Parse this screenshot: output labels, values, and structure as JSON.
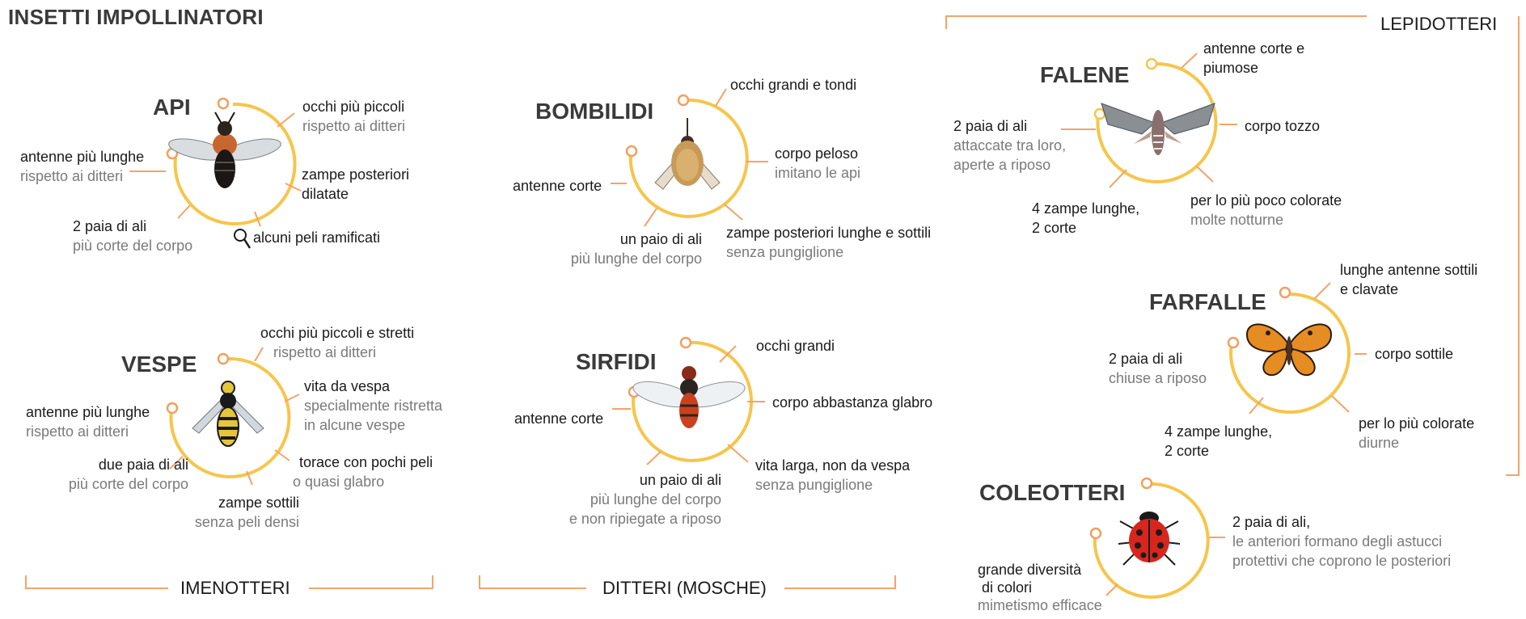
{
  "title": "INSETTI IMPOLLINATORI",
  "colors": {
    "ring": "#F6C54A",
    "accent": "#F0A060",
    "line": "#F2A46A",
    "sub_text": "#7a7a7a"
  },
  "groups": {
    "imenotteri": "IMENOTTERI",
    "ditteri": "DITTERI (MOSCHE)",
    "lepidotteri": "LEPIDOTTERI",
    "coleotteri": "COLEOTTERI"
  },
  "insects": {
    "api": {
      "name": "API",
      "icon": "bee-icon",
      "eyes": {
        "main": "occhi più piccoli",
        "sub": "rispetto ai ditteri"
      },
      "antennae": {
        "main": "antenne più lunghe",
        "sub": "rispetto ai ditteri"
      },
      "legs": {
        "main": "zampe posteriori",
        "sub": "dilatate"
      },
      "wings": {
        "main": "2 paia di ali",
        "sub": "più corte del corpo"
      },
      "hairs": {
        "main": "alcuni peli ramificati"
      }
    },
    "bombilidi": {
      "name": "BOMBILIDI",
      "icon": "bee-fly-icon",
      "eyes": {
        "main": "occhi grandi e tondi"
      },
      "antennae": {
        "main": "antenne corte"
      },
      "body": {
        "main": "corpo peloso",
        "sub": "imitano le api"
      },
      "wings": {
        "main": "un paio di ali",
        "sub": "più lunghe del corpo"
      },
      "legs": {
        "main": "zampe posteriori lunghe e sottili",
        "sub": "senza pungiglione"
      }
    },
    "falene": {
      "name": "FALENE",
      "icon": "moth-icon",
      "antennae": {
        "main": "antenne corte e",
        "sub": "piumose"
      },
      "wings": {
        "main": "2 paia di ali",
        "sub1": "attaccate tra loro,",
        "sub2": "aperte a riposo"
      },
      "body": {
        "main": "corpo tozzo"
      },
      "legs": {
        "main": "4 zampe lunghe,",
        "main2": "2 corte"
      },
      "colors": {
        "main": "per lo più poco colorate",
        "sub": "molte notturne"
      }
    },
    "farfalle": {
      "name": "FARFALLE",
      "icon": "butterfly-icon",
      "antennae": {
        "main": "lunghe antenne sottili",
        "main2": "e clavate"
      },
      "wings": {
        "main": "2 paia di ali",
        "sub": "chiuse a riposo"
      },
      "body": {
        "main": "corpo sottile"
      },
      "legs": {
        "main": "4 zampe lunghe,",
        "main2": "2 corte"
      },
      "colors": {
        "main": "per lo più colorate",
        "sub": "diurne"
      }
    },
    "vespe": {
      "name": "VESPE",
      "icon": "wasp-icon",
      "eyes": {
        "main": "occhi più piccoli e stretti",
        "sub": "rispetto ai ditteri"
      },
      "antennae": {
        "main": "antenne più lunghe",
        "sub": "rispetto ai ditteri"
      },
      "waist": {
        "main": "vita da vespa",
        "sub1": "specialmente ristretta",
        "sub2": "in alcune vespe"
      },
      "thorax": {
        "main": "torace con pochi peli",
        "sub": "o quasi glabro"
      },
      "wings": {
        "main": "due paia di ali",
        "sub": "più corte del corpo"
      },
      "legs": {
        "main": "zampe sottili",
        "sub": "senza peli densi"
      }
    },
    "sirfidi": {
      "name": "SIRFIDI",
      "icon": "hoverfly-icon",
      "eyes": {
        "main": "occhi grandi"
      },
      "antennae": {
        "main": "antenne corte"
      },
      "body": {
        "main": "corpo abbastanza glabro"
      },
      "waist": {
        "main": "vita larga, non da vespa",
        "sub": "senza pungiglione"
      },
      "wings": {
        "main": "un paio di ali",
        "sub1": "più lunghe del corpo",
        "sub2": "e non ripiegate a riposo"
      }
    },
    "coleotteri": {
      "name": "COLEOTTERI",
      "icon": "ladybug-icon",
      "wings": {
        "main": "2 paia di ali,",
        "sub1": "le anteriori formano degli astucci",
        "sub2": "protettivi che coprono le posteriori"
      },
      "colors": {
        "main": "grande diversità",
        "main2": " di colori",
        "sub": "mimetismo efficace"
      }
    }
  }
}
